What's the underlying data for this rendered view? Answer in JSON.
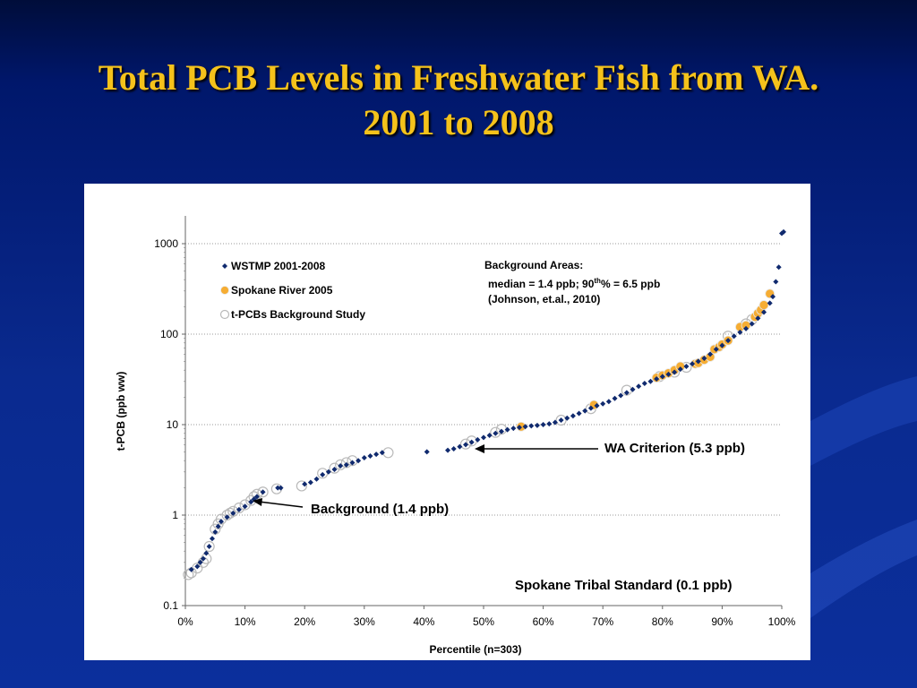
{
  "slide": {
    "title_line1": "Total PCB Levels in Freshwater Fish from WA.",
    "title_line2": "2001 to 2008"
  },
  "annotations": {
    "bg_areas_title": "Background Areas:",
    "bg_areas_median": "median = 1.4 ppb; 90",
    "bg_areas_sup": "th",
    "bg_areas_tail": "% = 6.5 ppb",
    "bg_areas_ref": "(Johnson, et.al., 2010)",
    "wa_criterion": "WA Criterion (5.3 ppb)",
    "background": "Background (1.4 ppb)",
    "spokane_tribal": "Spokane Tribal Standard (0.1 ppb)"
  },
  "colors": {
    "title": "#f5c21b",
    "wstmp": "#102a6e",
    "spokane": "#f6ad33",
    "background_study": "#ffffff"
  },
  "chart_data": {
    "type": "scatter",
    "xlabel": "Percentile  (n=303)",
    "ylabel": "t-PCB  (ppb ww)",
    "x_ticks": [
      "0%",
      "10%",
      "20%",
      "30%",
      "40%",
      "50%",
      "60%",
      "70%",
      "80%",
      "90%",
      "100%"
    ],
    "y_ticks": [
      "0.1",
      "1",
      "10",
      "100",
      "1000"
    ],
    "xlim": [
      0,
      100
    ],
    "ylim": [
      0.1,
      2000
    ],
    "y_scale": "log",
    "grid": "horizontal dotted",
    "legend_position": "top-left",
    "series": [
      {
        "name": "WSTMP 2001-2008",
        "marker": "diamond",
        "color": "#102a6e",
        "points": [
          [
            1,
            0.25
          ],
          [
            2,
            0.27
          ],
          [
            2.5,
            0.3
          ],
          [
            3,
            0.33
          ],
          [
            3.5,
            0.38
          ],
          [
            4,
            0.45
          ],
          [
            4.5,
            0.55
          ],
          [
            5,
            0.65
          ],
          [
            5.5,
            0.75
          ],
          [
            6,
            0.85
          ],
          [
            7,
            0.95
          ],
          [
            8,
            1.05
          ],
          [
            9,
            1.15
          ],
          [
            10,
            1.25
          ],
          [
            11,
            1.4
          ],
          [
            11.5,
            1.5
          ],
          [
            12,
            1.6
          ],
          [
            13,
            1.8
          ],
          [
            15.5,
            2
          ],
          [
            16,
            2
          ],
          [
            20,
            2.2
          ],
          [
            21,
            2.3
          ],
          [
            22,
            2.5
          ],
          [
            23,
            2.8
          ],
          [
            24,
            3
          ],
          [
            25,
            3.2
          ],
          [
            26,
            3.5
          ],
          [
            27,
            3.6
          ],
          [
            28,
            3.8
          ],
          [
            29,
            4
          ],
          [
            30,
            4.3
          ],
          [
            31,
            4.5
          ],
          [
            32,
            4.7
          ],
          [
            33,
            4.9
          ],
          [
            40.5,
            5
          ],
          [
            44,
            5.2
          ],
          [
            45,
            5.4
          ],
          [
            46,
            5.7
          ],
          [
            47,
            6
          ],
          [
            48,
            6.4
          ],
          [
            49,
            6.8
          ],
          [
            50,
            7.2
          ],
          [
            51,
            7.6
          ],
          [
            52,
            8
          ],
          [
            53,
            8.4
          ],
          [
            54,
            8.8
          ],
          [
            55,
            9.1
          ],
          [
            56,
            9.3
          ],
          [
            57,
            9.5
          ],
          [
            58,
            9.7
          ],
          [
            59,
            9.8
          ],
          [
            60,
            10
          ],
          [
            61,
            10.2
          ],
          [
            62,
            10.6
          ],
          [
            63,
            11.2
          ],
          [
            64,
            11.8
          ],
          [
            65,
            12.5
          ],
          [
            66,
            13.3
          ],
          [
            67,
            14.2
          ],
          [
            68,
            15.2
          ],
          [
            69,
            16.2
          ],
          [
            70,
            17
          ],
          [
            71,
            18
          ],
          [
            72,
            19.5
          ],
          [
            73,
            21
          ],
          [
            74,
            22.5
          ],
          [
            75,
            24.5
          ],
          [
            76,
            26.5
          ],
          [
            77,
            28.5
          ],
          [
            78,
            30
          ],
          [
            79,
            32
          ],
          [
            80,
            34
          ],
          [
            81,
            36
          ],
          [
            82,
            38
          ],
          [
            83,
            41
          ],
          [
            84,
            44
          ],
          [
            85,
            47
          ],
          [
            86,
            50
          ],
          [
            87,
            54
          ],
          [
            88,
            60
          ],
          [
            89,
            68
          ],
          [
            90,
            75
          ],
          [
            91,
            85
          ],
          [
            92,
            95
          ],
          [
            93,
            105
          ],
          [
            94,
            115
          ],
          [
            95,
            130
          ],
          [
            96,
            150
          ],
          [
            97,
            175
          ],
          [
            98,
            220
          ],
          [
            98.5,
            260
          ],
          [
            99,
            380
          ],
          [
            99.5,
            550
          ],
          [
            100,
            1300
          ],
          [
            100.3,
            1350
          ]
        ]
      },
      {
        "name": "Spokane River 2005",
        "marker": "circle",
        "color": "#f6ad33",
        "points": [
          [
            56.3,
            9.5
          ],
          [
            68.5,
            16.5
          ],
          [
            79,
            33
          ],
          [
            80,
            35
          ],
          [
            81,
            37
          ],
          [
            82,
            40
          ],
          [
            83,
            44
          ],
          [
            85.5,
            47
          ],
          [
            86,
            48
          ],
          [
            87,
            52
          ],
          [
            88,
            56
          ],
          [
            88.7,
            68
          ],
          [
            89.5,
            72
          ],
          [
            90,
            77
          ],
          [
            91,
            85
          ],
          [
            93,
            120
          ],
          [
            94,
            125
          ],
          [
            95.5,
            155
          ],
          [
            96,
            170
          ],
          [
            96.5,
            185
          ],
          [
            97,
            210
          ],
          [
            98,
            280
          ]
        ]
      },
      {
        "name": "t-PCBs Background Study",
        "marker": "open-circle",
        "color": "#ffffff",
        "points": [
          [
            0.5,
            0.22
          ],
          [
            1,
            0.23
          ],
          [
            2,
            0.26
          ],
          [
            3,
            0.3
          ],
          [
            3.5,
            0.33
          ],
          [
            4,
            0.45
          ],
          [
            5,
            0.7
          ],
          [
            5.5,
            0.8
          ],
          [
            6,
            0.9
          ],
          [
            7,
            1
          ],
          [
            7.5,
            1.05
          ],
          [
            8,
            1.1
          ],
          [
            9,
            1.2
          ],
          [
            10,
            1.3
          ],
          [
            11,
            1.45
          ],
          [
            11.5,
            1.6
          ],
          [
            12,
            1.7
          ],
          [
            13,
            1.8
          ],
          [
            15.3,
            1.95
          ],
          [
            19.5,
            2.1
          ],
          [
            23,
            2.9
          ],
          [
            25,
            3.3
          ],
          [
            26,
            3.6
          ],
          [
            27,
            3.8
          ],
          [
            28,
            4
          ],
          [
            34,
            4.9
          ],
          [
            47,
            6.1
          ],
          [
            48,
            6.6
          ],
          [
            52,
            8.2
          ],
          [
            53,
            8.9
          ],
          [
            63,
            11.2
          ],
          [
            68,
            15
          ],
          [
            74,
            24
          ],
          [
            79.5,
            34
          ],
          [
            82,
            38
          ],
          [
            84,
            43
          ],
          [
            91,
            95
          ],
          [
            94,
            130
          ],
          [
            95,
            145
          ]
        ]
      }
    ]
  }
}
